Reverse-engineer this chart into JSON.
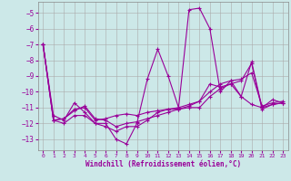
{
  "xlabel": "Windchill (Refroidissement éolien,°C)",
  "bg_color": "#cce8e8",
  "grid_color": "#aaaaaa",
  "line_color": "#990099",
  "xlim": [
    -0.5,
    23.5
  ],
  "ylim": [
    -13.7,
    -4.3
  ],
  "yticks": [
    -13,
    -12,
    -11,
    -10,
    -9,
    -8,
    -7,
    -6,
    -5
  ],
  "xticks": [
    0,
    1,
    2,
    3,
    4,
    5,
    6,
    7,
    8,
    9,
    10,
    11,
    12,
    13,
    14,
    15,
    16,
    17,
    18,
    19,
    20,
    21,
    22,
    23
  ],
  "series1": [
    [
      0,
      -7.0
    ],
    [
      1,
      -11.5
    ],
    [
      2,
      -11.8
    ],
    [
      3,
      -10.7
    ],
    [
      4,
      -11.3
    ],
    [
      5,
      -12.0
    ],
    [
      6,
      -12.0
    ],
    [
      7,
      -13.0
    ],
    [
      8,
      -13.3
    ],
    [
      9,
      -12.0
    ],
    [
      10,
      -9.2
    ],
    [
      11,
      -7.3
    ],
    [
      12,
      -9.0
    ],
    [
      13,
      -11.0
    ],
    [
      14,
      -4.8
    ],
    [
      15,
      -4.7
    ],
    [
      16,
      -6.0
    ],
    [
      17,
      -10.0
    ],
    [
      18,
      -9.3
    ],
    [
      19,
      -10.3
    ],
    [
      20,
      -8.1
    ],
    [
      21,
      -11.0
    ],
    [
      22,
      -10.5
    ],
    [
      23,
      -10.7
    ]
  ],
  "series2": [
    [
      0,
      -7.0
    ],
    [
      1,
      -11.8
    ],
    [
      2,
      -11.7
    ],
    [
      3,
      -11.2
    ],
    [
      4,
      -10.9
    ],
    [
      5,
      -11.7
    ],
    [
      6,
      -11.8
    ],
    [
      7,
      -12.2
    ],
    [
      8,
      -12.0
    ],
    [
      9,
      -11.9
    ],
    [
      10,
      -11.7
    ],
    [
      11,
      -11.5
    ],
    [
      12,
      -11.3
    ],
    [
      13,
      -11.1
    ],
    [
      14,
      -10.9
    ],
    [
      15,
      -10.6
    ],
    [
      16,
      -10.0
    ],
    [
      17,
      -9.5
    ],
    [
      18,
      -9.3
    ],
    [
      19,
      -9.2
    ],
    [
      20,
      -8.8
    ],
    [
      21,
      -10.9
    ],
    [
      22,
      -10.7
    ],
    [
      23,
      -10.6
    ]
  ],
  "series3": [
    [
      0,
      -7.0
    ],
    [
      1,
      -11.8
    ],
    [
      2,
      -11.7
    ],
    [
      3,
      -11.1
    ],
    [
      4,
      -11.0
    ],
    [
      5,
      -11.8
    ],
    [
      6,
      -11.7
    ],
    [
      7,
      -11.5
    ],
    [
      8,
      -11.4
    ],
    [
      9,
      -11.5
    ],
    [
      10,
      -11.3
    ],
    [
      11,
      -11.2
    ],
    [
      12,
      -11.1
    ],
    [
      13,
      -11.0
    ],
    [
      14,
      -10.8
    ],
    [
      15,
      -10.6
    ],
    [
      16,
      -9.5
    ],
    [
      17,
      -9.7
    ],
    [
      18,
      -9.5
    ],
    [
      19,
      -10.3
    ],
    [
      20,
      -10.8
    ],
    [
      21,
      -11.0
    ],
    [
      22,
      -10.8
    ],
    [
      23,
      -10.7
    ]
  ],
  "series4": [
    [
      0,
      -7.0
    ],
    [
      1,
      -11.8
    ],
    [
      2,
      -12.0
    ],
    [
      3,
      -11.5
    ],
    [
      4,
      -11.5
    ],
    [
      5,
      -12.0
    ],
    [
      6,
      -12.2
    ],
    [
      7,
      -12.5
    ],
    [
      8,
      -12.2
    ],
    [
      9,
      -12.2
    ],
    [
      10,
      -11.8
    ],
    [
      11,
      -11.3
    ],
    [
      12,
      -11.1
    ],
    [
      13,
      -11.1
    ],
    [
      14,
      -11.0
    ],
    [
      15,
      -11.0
    ],
    [
      16,
      -10.3
    ],
    [
      17,
      -9.8
    ],
    [
      18,
      -9.5
    ],
    [
      19,
      -9.3
    ],
    [
      20,
      -8.2
    ],
    [
      21,
      -11.1
    ],
    [
      22,
      -10.8
    ],
    [
      23,
      -10.7
    ]
  ]
}
